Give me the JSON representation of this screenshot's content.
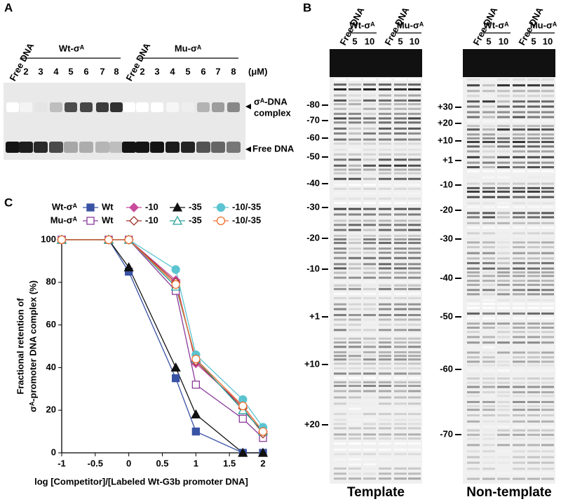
{
  "panel_a": {
    "label": "A",
    "free_dna": "Free DNA",
    "wt": "Wt-σᴬ",
    "mu": "Mu-σᴬ",
    "conc": [
      2,
      3,
      4,
      5,
      6,
      7,
      8
    ],
    "unit": "(μM)",
    "complex": [
      "σᴬ-DNA",
      "complex"
    ],
    "free_band": "Free DNA"
  },
  "panel_b": {
    "label": "B",
    "header": {
      "free_dna": "Free DNA",
      "wt": "Wt-σᴬ",
      "mu": "Mu-σᴬ",
      "conc": [
        5,
        10
      ]
    },
    "template": {
      "caption": "Template",
      "markers": [
        "-80",
        "-70",
        "-60",
        "-50",
        "-40",
        "-30",
        "-20",
        "-10",
        "+1",
        "+10",
        "+20"
      ]
    },
    "non_template": {
      "caption": "Non-template",
      "markers": [
        "+30",
        "+20",
        "+10",
        "+1",
        "-10",
        "-20",
        "-30",
        "-40",
        "-50",
        "-60",
        "-70"
      ]
    }
  },
  "panel_c": {
    "label": "C"
  },
  "chart_data": {
    "type": "line",
    "x_label": "log [Competitor]/[Labeled Wt-G3b promoter DNA]",
    "y_label": [
      "Fractional retention of",
      "σᴬ-promoter DNA complex (%)"
    ],
    "legend_groups": [
      "Wt-σᴬ",
      "Mu-σᴬ"
    ],
    "x": [
      -1,
      -0.3,
      0,
      0.7,
      1,
      1.7,
      2
    ],
    "xlim": [
      -1,
      2
    ],
    "xticks": [
      -1,
      -0.5,
      0,
      0.5,
      1,
      1.5,
      2
    ],
    "ylim": [
      0,
      100
    ],
    "yticks": [
      0,
      20,
      40,
      60,
      80,
      100
    ],
    "series": [
      {
        "name": "Wt",
        "color": "#3953a4",
        "marker": "square",
        "filled": true,
        "values": [
          100,
          100,
          85,
          35,
          10,
          0,
          0
        ]
      },
      {
        "name": "-10",
        "color": "#c84a9b",
        "marker": "diamond",
        "filled": true,
        "values": [
          100,
          100,
          100,
          81,
          42,
          22,
          10
        ]
      },
      {
        "name": "-35",
        "color": "#111111",
        "marker": "triangle",
        "filled": true,
        "values": [
          100,
          100,
          87,
          40,
          18,
          0,
          0
        ]
      },
      {
        "name": "-10/-35",
        "color": "#5bc4d1",
        "marker": "circle",
        "filled": true,
        "values": [
          100,
          100,
          100,
          86,
          46,
          25,
          12
        ]
      },
      {
        "name": "Wt",
        "color": "#8a3a9a",
        "marker": "square",
        "filled": false,
        "values": [
          100,
          100,
          100,
          76,
          32,
          16,
          7
        ]
      },
      {
        "name": "-10",
        "color": "#a0302a",
        "marker": "diamond",
        "filled": false,
        "values": [
          100,
          100,
          100,
          80,
          43,
          21,
          9
        ]
      },
      {
        "name": "-35",
        "color": "#2aa39a",
        "marker": "triangle",
        "filled": false,
        "values": [
          100,
          100,
          100,
          78,
          44,
          20,
          10
        ]
      },
      {
        "name": "-10/-35",
        "color": "#f07030",
        "marker": "circle",
        "filled": false,
        "values": [
          100,
          100,
          100,
          79,
          44,
          22,
          10
        ]
      }
    ]
  }
}
